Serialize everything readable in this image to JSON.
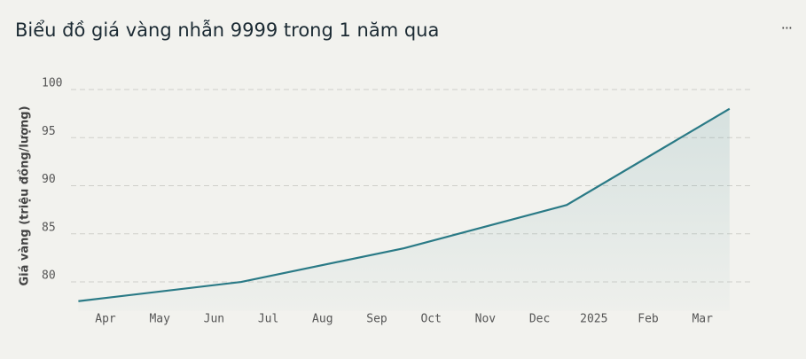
{
  "chart_data": {
    "type": "line",
    "title": "Biểu đồ giá vàng nhẫn 9999 trong 1 năm qua",
    "ylabel": "Giá vàng (triệu đồng/lượng)",
    "x": [
      "2024-03",
      "2024-06",
      "2024-09",
      "2024-12",
      "2025-03"
    ],
    "series": [
      {
        "name": "Giá vàng",
        "color": "#2a7a86",
        "values": [
          78,
          80,
          83.5,
          88,
          98
        ]
      }
    ],
    "xticks": [
      {
        "value": "2024-04",
        "label": "Apr"
      },
      {
        "value": "2024-05",
        "label": "May"
      },
      {
        "value": "2024-06",
        "label": "Jun"
      },
      {
        "value": "2024-07",
        "label": "Jul"
      },
      {
        "value": "2024-08",
        "label": "Aug"
      },
      {
        "value": "2024-09",
        "label": "Sep"
      },
      {
        "value": "2024-10",
        "label": "Oct"
      },
      {
        "value": "2024-11",
        "label": "Nov"
      },
      {
        "value": "2024-12",
        "label": "Dec"
      },
      {
        "value": "2025-01",
        "label": "2025"
      },
      {
        "value": "2025-02",
        "label": "Feb"
      },
      {
        "value": "2025-03",
        "label": "Mar"
      }
    ],
    "ylim": [
      77,
      100
    ],
    "yticks": [
      80,
      85,
      90,
      95,
      100
    ],
    "grid": true,
    "area": true
  }
}
